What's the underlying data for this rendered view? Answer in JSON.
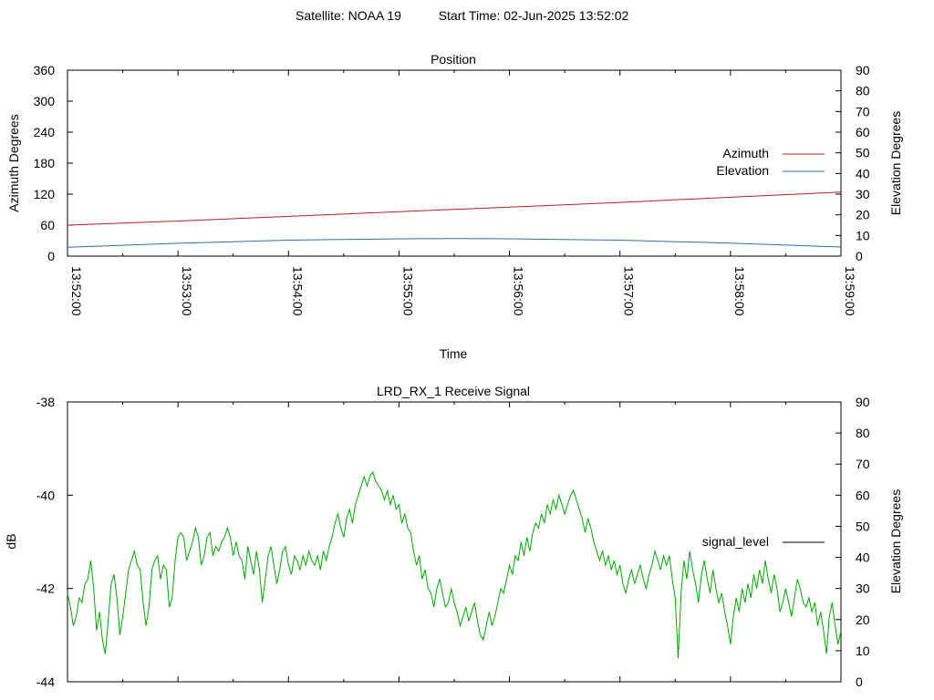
{
  "header": {
    "satellite": "Satellite: NOAA 19",
    "start_time": "Start Time: 02-Jun-2025 13:52:02"
  },
  "chart_data": [
    {
      "type": "line",
      "title": "Position",
      "xlabel": "Time",
      "ylabel": "Azimuth Degrees",
      "y2label": "Elevation Degrees",
      "x_ticks": [
        "13:52:00",
        "13:53:00",
        "13:54:00",
        "13:55:00",
        "13:56:00",
        "13:57:00",
        "13:58:00",
        "13:59:00"
      ],
      "ylim": [
        0,
        360
      ],
      "y_ticks": [
        "0",
        "60",
        "120",
        "180",
        "240",
        "300",
        "360"
      ],
      "y2lim": [
        0,
        90
      ],
      "y2_ticks": [
        "0",
        "10",
        "20",
        "30",
        "40",
        "50",
        "60",
        "70",
        "80",
        "90"
      ],
      "legend_position": "right",
      "grid": false,
      "series": [
        {
          "name": "Azimuth",
          "axis": "y",
          "color": "#b22222",
          "x_minutes": [
            0,
            1,
            2,
            3,
            4,
            5,
            6,
            7
          ],
          "values": [
            60,
            68,
            77,
            86,
            95,
            104,
            114,
            124
          ]
        },
        {
          "name": "Elevation",
          "axis": "y2",
          "color": "#2f6fb0",
          "x_minutes": [
            0,
            1,
            2,
            3,
            3.5,
            4,
            5,
            6,
            7
          ],
          "values": [
            4.3,
            6.2,
            7.7,
            8.4,
            8.5,
            8.4,
            7.7,
            6.3,
            4.4
          ]
        }
      ]
    },
    {
      "type": "line",
      "title": "LRD_RX_1 Receive Signal",
      "ylabel": "dB",
      "y2label": "Elevation Degrees",
      "ylim": [
        -44,
        -38
      ],
      "y_ticks": [
        "-44",
        "-42",
        "-40",
        "-38"
      ],
      "y2lim": [
        0,
        90
      ],
      "y2_ticks": [
        "0",
        "10",
        "20",
        "30",
        "40",
        "50",
        "60",
        "70",
        "80",
        "90"
      ],
      "legend_position": "right",
      "series": [
        {
          "name": "signal_level",
          "legend_color": "#000000",
          "color": "#00aa00",
          "x_minutes_range": [
            0,
            7
          ],
          "values": [
            -42.1,
            -42.4,
            -42.8,
            -42.6,
            -42.2,
            -42.3,
            -41.9,
            -41.8,
            -41.4,
            -42.0,
            -42.9,
            -42.5,
            -43.1,
            -43.4,
            -42.7,
            -41.9,
            -41.7,
            -42.2,
            -43.0,
            -42.6,
            -42.1,
            -41.6,
            -41.4,
            -41.2,
            -41.5,
            -41.6,
            -42.3,
            -42.8,
            -42.4,
            -41.6,
            -41.4,
            -41.3,
            -41.8,
            -41.5,
            -41.6,
            -42.4,
            -42.2,
            -41.4,
            -40.9,
            -40.8,
            -40.9,
            -41.4,
            -41.2,
            -41.0,
            -40.7,
            -40.9,
            -41.5,
            -41.3,
            -40.9,
            -40.8,
            -41.3,
            -41.1,
            -41.2,
            -41.0,
            -40.9,
            -40.7,
            -40.9,
            -41.3,
            -41.0,
            -41.3,
            -41.4,
            -41.8,
            -41.1,
            -41.4,
            -41.7,
            -41.2,
            -41.6,
            -42.3,
            -41.8,
            -41.3,
            -41.1,
            -41.5,
            -41.9,
            -41.6,
            -41.2,
            -41.1,
            -41.5,
            -41.7,
            -41.3,
            -41.4,
            -41.6,
            -41.3,
            -41.5,
            -41.2,
            -41.4,
            -41.5,
            -41.3,
            -41.6,
            -41.2,
            -41.4,
            -41.1,
            -40.9,
            -40.6,
            -40.4,
            -40.7,
            -40.9,
            -40.5,
            -40.3,
            -40.6,
            -40.2,
            -40.0,
            -39.8,
            -39.6,
            -39.8,
            -39.6,
            -39.5,
            -39.7,
            -39.8,
            -39.9,
            -40.1,
            -39.9,
            -40.2,
            -40.0,
            -40.3,
            -40.2,
            -40.6,
            -40.4,
            -40.7,
            -40.8,
            -41.2,
            -41.5,
            -41.3,
            -41.8,
            -41.6,
            -42.0,
            -42.1,
            -42.4,
            -42.0,
            -41.8,
            -42.1,
            -42.4,
            -42.3,
            -42.0,
            -42.3,
            -42.5,
            -42.8,
            -42.6,
            -42.4,
            -42.7,
            -42.5,
            -42.3,
            -42.7,
            -43.0,
            -43.1,
            -42.8,
            -42.5,
            -42.8,
            -42.6,
            -42.3,
            -42.0,
            -42.1,
            -41.8,
            -41.5,
            -41.7,
            -41.3,
            -41.4,
            -41.0,
            -41.3,
            -40.9,
            -41.2,
            -40.8,
            -40.6,
            -40.7,
            -40.4,
            -40.6,
            -40.2,
            -40.4,
            -40.1,
            -40.3,
            -40.0,
            -40.2,
            -40.4,
            -40.2,
            -40.0,
            -39.9,
            -40.1,
            -40.3,
            -40.5,
            -40.8,
            -40.5,
            -40.7,
            -41.0,
            -41.2,
            -41.4,
            -41.2,
            -41.5,
            -41.3,
            -41.6,
            -41.4,
            -41.7,
            -41.5,
            -41.9,
            -42.1,
            -41.8,
            -41.6,
            -41.9,
            -41.7,
            -41.5,
            -41.8,
            -42.0,
            -41.7,
            -41.5,
            -41.2,
            -41.4,
            -41.6,
            -41.3,
            -41.5,
            -41.3,
            -41.8,
            -42.2,
            -43.5,
            -42.1,
            -41.4,
            -41.8,
            -41.2,
            -41.6,
            -41.9,
            -42.3,
            -41.7,
            -41.4,
            -41.8,
            -42.1,
            -41.6,
            -42.0,
            -42.3,
            -42.1,
            -42.5,
            -42.8,
            -43.2,
            -42.6,
            -42.2,
            -42.5,
            -42.0,
            -42.3,
            -41.9,
            -42.2,
            -41.7,
            -42.0,
            -41.6,
            -41.9,
            -41.4,
            -41.8,
            -42.1,
            -41.7,
            -42.0,
            -42.5,
            -42.3,
            -42.0,
            -42.3,
            -42.6,
            -42.2,
            -41.8,
            -42.0,
            -42.3,
            -42.4,
            -42.2,
            -42.5,
            -42.3,
            -42.8,
            -42.5,
            -42.9,
            -43.4,
            -42.6,
            -42.3,
            -42.8,
            -43.2,
            -42.9
          ]
        }
      ]
    }
  ]
}
